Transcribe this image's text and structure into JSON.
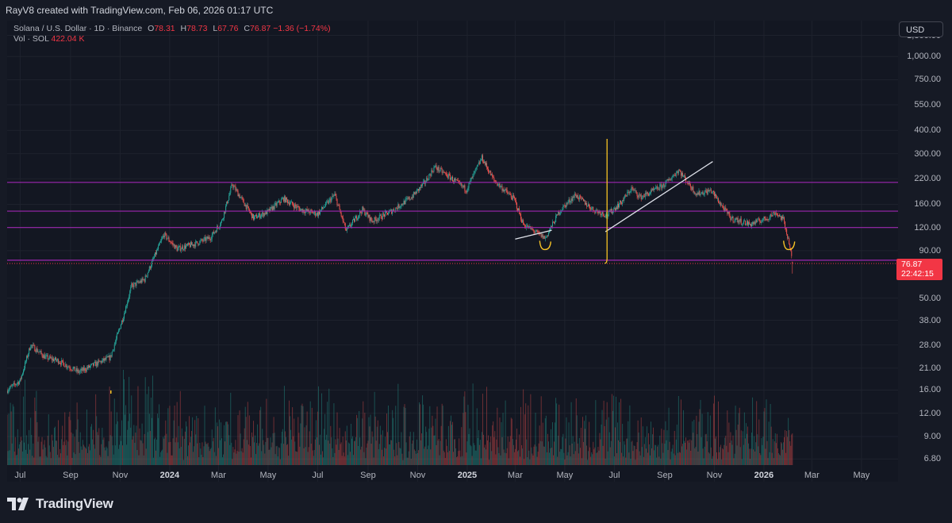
{
  "credit": "RayV8 created with TradingView.com, Feb 06, 2026 01:17 UTC",
  "legend": {
    "symbol": "Solana / U.S. Dollar · 1D · Binance",
    "open_label": "O",
    "open": "78.31",
    "high_label": "H",
    "high": "78.73",
    "low_label": "L",
    "low": "67.76",
    "close_label": "C",
    "close": "76.87",
    "change": "−1.36 (−1.74%)",
    "vol_label": "Vol · SOL",
    "vol": "422.04 K"
  },
  "currency_button": "USD",
  "price_badge": {
    "price": "76.87",
    "countdown": "22:42:15"
  },
  "y_ticks": [
    "1,300.00",
    "1,000.00",
    "750.00",
    "550.00",
    "400.00",
    "300.00",
    "220.00",
    "160.00",
    "120.00",
    "90.00",
    "50.00",
    "38.00",
    "28.00",
    "21.00",
    "16.00",
    "12.00",
    "9.00",
    "6.80"
  ],
  "x_ticks": [
    {
      "label": "Jul",
      "bold": false
    },
    {
      "label": "Sep",
      "bold": false
    },
    {
      "label": "Nov",
      "bold": false
    },
    {
      "label": "2024",
      "bold": true
    },
    {
      "label": "Mar",
      "bold": false
    },
    {
      "label": "May",
      "bold": false
    },
    {
      "label": "Jul",
      "bold": false
    },
    {
      "label": "Sep",
      "bold": false
    },
    {
      "label": "Nov",
      "bold": false
    },
    {
      "label": "2025",
      "bold": true
    },
    {
      "label": "Mar",
      "bold": false
    },
    {
      "label": "May",
      "bold": false
    },
    {
      "label": "Jul",
      "bold": false
    },
    {
      "label": "Sep",
      "bold": false
    },
    {
      "label": "Nov",
      "bold": false
    },
    {
      "label": "2026",
      "bold": true
    },
    {
      "label": "Mar",
      "bold": false
    },
    {
      "label": "May",
      "bold": false
    }
  ],
  "brand": "TradingView",
  "colors": {
    "background": "#131722",
    "up": "#26a69a",
    "down": "#ef5350",
    "horizontal_levels": "#9c27b0",
    "current_price": "#f23645",
    "annotation_yellow": "#f7c325",
    "trendline": "#e0e3eb"
  },
  "chart_data": {
    "type": "line",
    "title": "Solana / U.S. Dollar · 1D · Binance",
    "scale": "log",
    "ylim": [
      5.5,
      1500
    ],
    "xlim": [
      "2023-06-15",
      "2026-06-15"
    ],
    "grid": true,
    "series": [
      {
        "name": "Solana / U.S. Dollar",
        "x": [
          "2023-06-15",
          "2023-07-01",
          "2023-07-14",
          "2023-08-01",
          "2023-08-17",
          "2023-09-11",
          "2023-10-01",
          "2023-10-20",
          "2023-11-05",
          "2023-11-15",
          "2023-12-01",
          "2023-12-25",
          "2024-01-10",
          "2024-02-01",
          "2024-02-20",
          "2024-03-05",
          "2024-03-18",
          "2024-04-13",
          "2024-05-01",
          "2024-05-20",
          "2024-06-10",
          "2024-07-01",
          "2024-07-22",
          "2024-08-05",
          "2024-08-25",
          "2024-09-06",
          "2024-10-01",
          "2024-10-25",
          "2024-11-10",
          "2024-11-22",
          "2024-12-10",
          "2024-12-31",
          "2025-01-19",
          "2025-02-03",
          "2025-02-28",
          "2025-03-11",
          "2025-04-07",
          "2025-04-25",
          "2025-05-14",
          "2025-06-05",
          "2025-06-22",
          "2025-07-10",
          "2025-07-22",
          "2025-08-02",
          "2025-08-14",
          "2025-09-01",
          "2025-09-18",
          "2025-10-10",
          "2025-10-28",
          "2025-11-21",
          "2025-12-15",
          "2026-01-05",
          "2026-01-15",
          "2026-01-25",
          "2026-02-01",
          "2026-02-05"
        ],
        "values": [
          16,
          18,
          28,
          24,
          23,
          20,
          22,
          24,
          40,
          58,
          63,
          110,
          92,
          98,
          106,
          130,
          205,
          135,
          146,
          172,
          150,
          142,
          180,
          115,
          150,
          130,
          148,
          176,
          210,
          255,
          225,
          192,
          285,
          215,
          170,
          125,
          105,
          148,
          180,
          150,
          140,
          165,
          195,
          175,
          185,
          205,
          245,
          182,
          190,
          135,
          125,
          135,
          145,
          132,
          100,
          76.87
        ]
      }
    ],
    "volume_peak": "422.04 K",
    "horizontal_levels": [
      210,
      147,
      120,
      80
    ],
    "current_price": 76.87,
    "annotations": [
      {
        "type": "trendline",
        "from": {
          "x": "2025-03-01",
          "y": 104
        },
        "to": {
          "x": "2025-04-15",
          "y": 116
        }
      },
      {
        "type": "trendline",
        "from": {
          "x": "2025-06-20",
          "y": 114
        },
        "to": {
          "x": "2025-10-30",
          "y": 272
        }
      },
      {
        "type": "vertical_line",
        "x": "2025-06-22",
        "ylim": [
          77,
          360
        ]
      },
      {
        "type": "arc",
        "x": "2025-04-07",
        "y": 96
      },
      {
        "type": "arc",
        "x": "2026-02-01",
        "y": 96
      }
    ]
  }
}
